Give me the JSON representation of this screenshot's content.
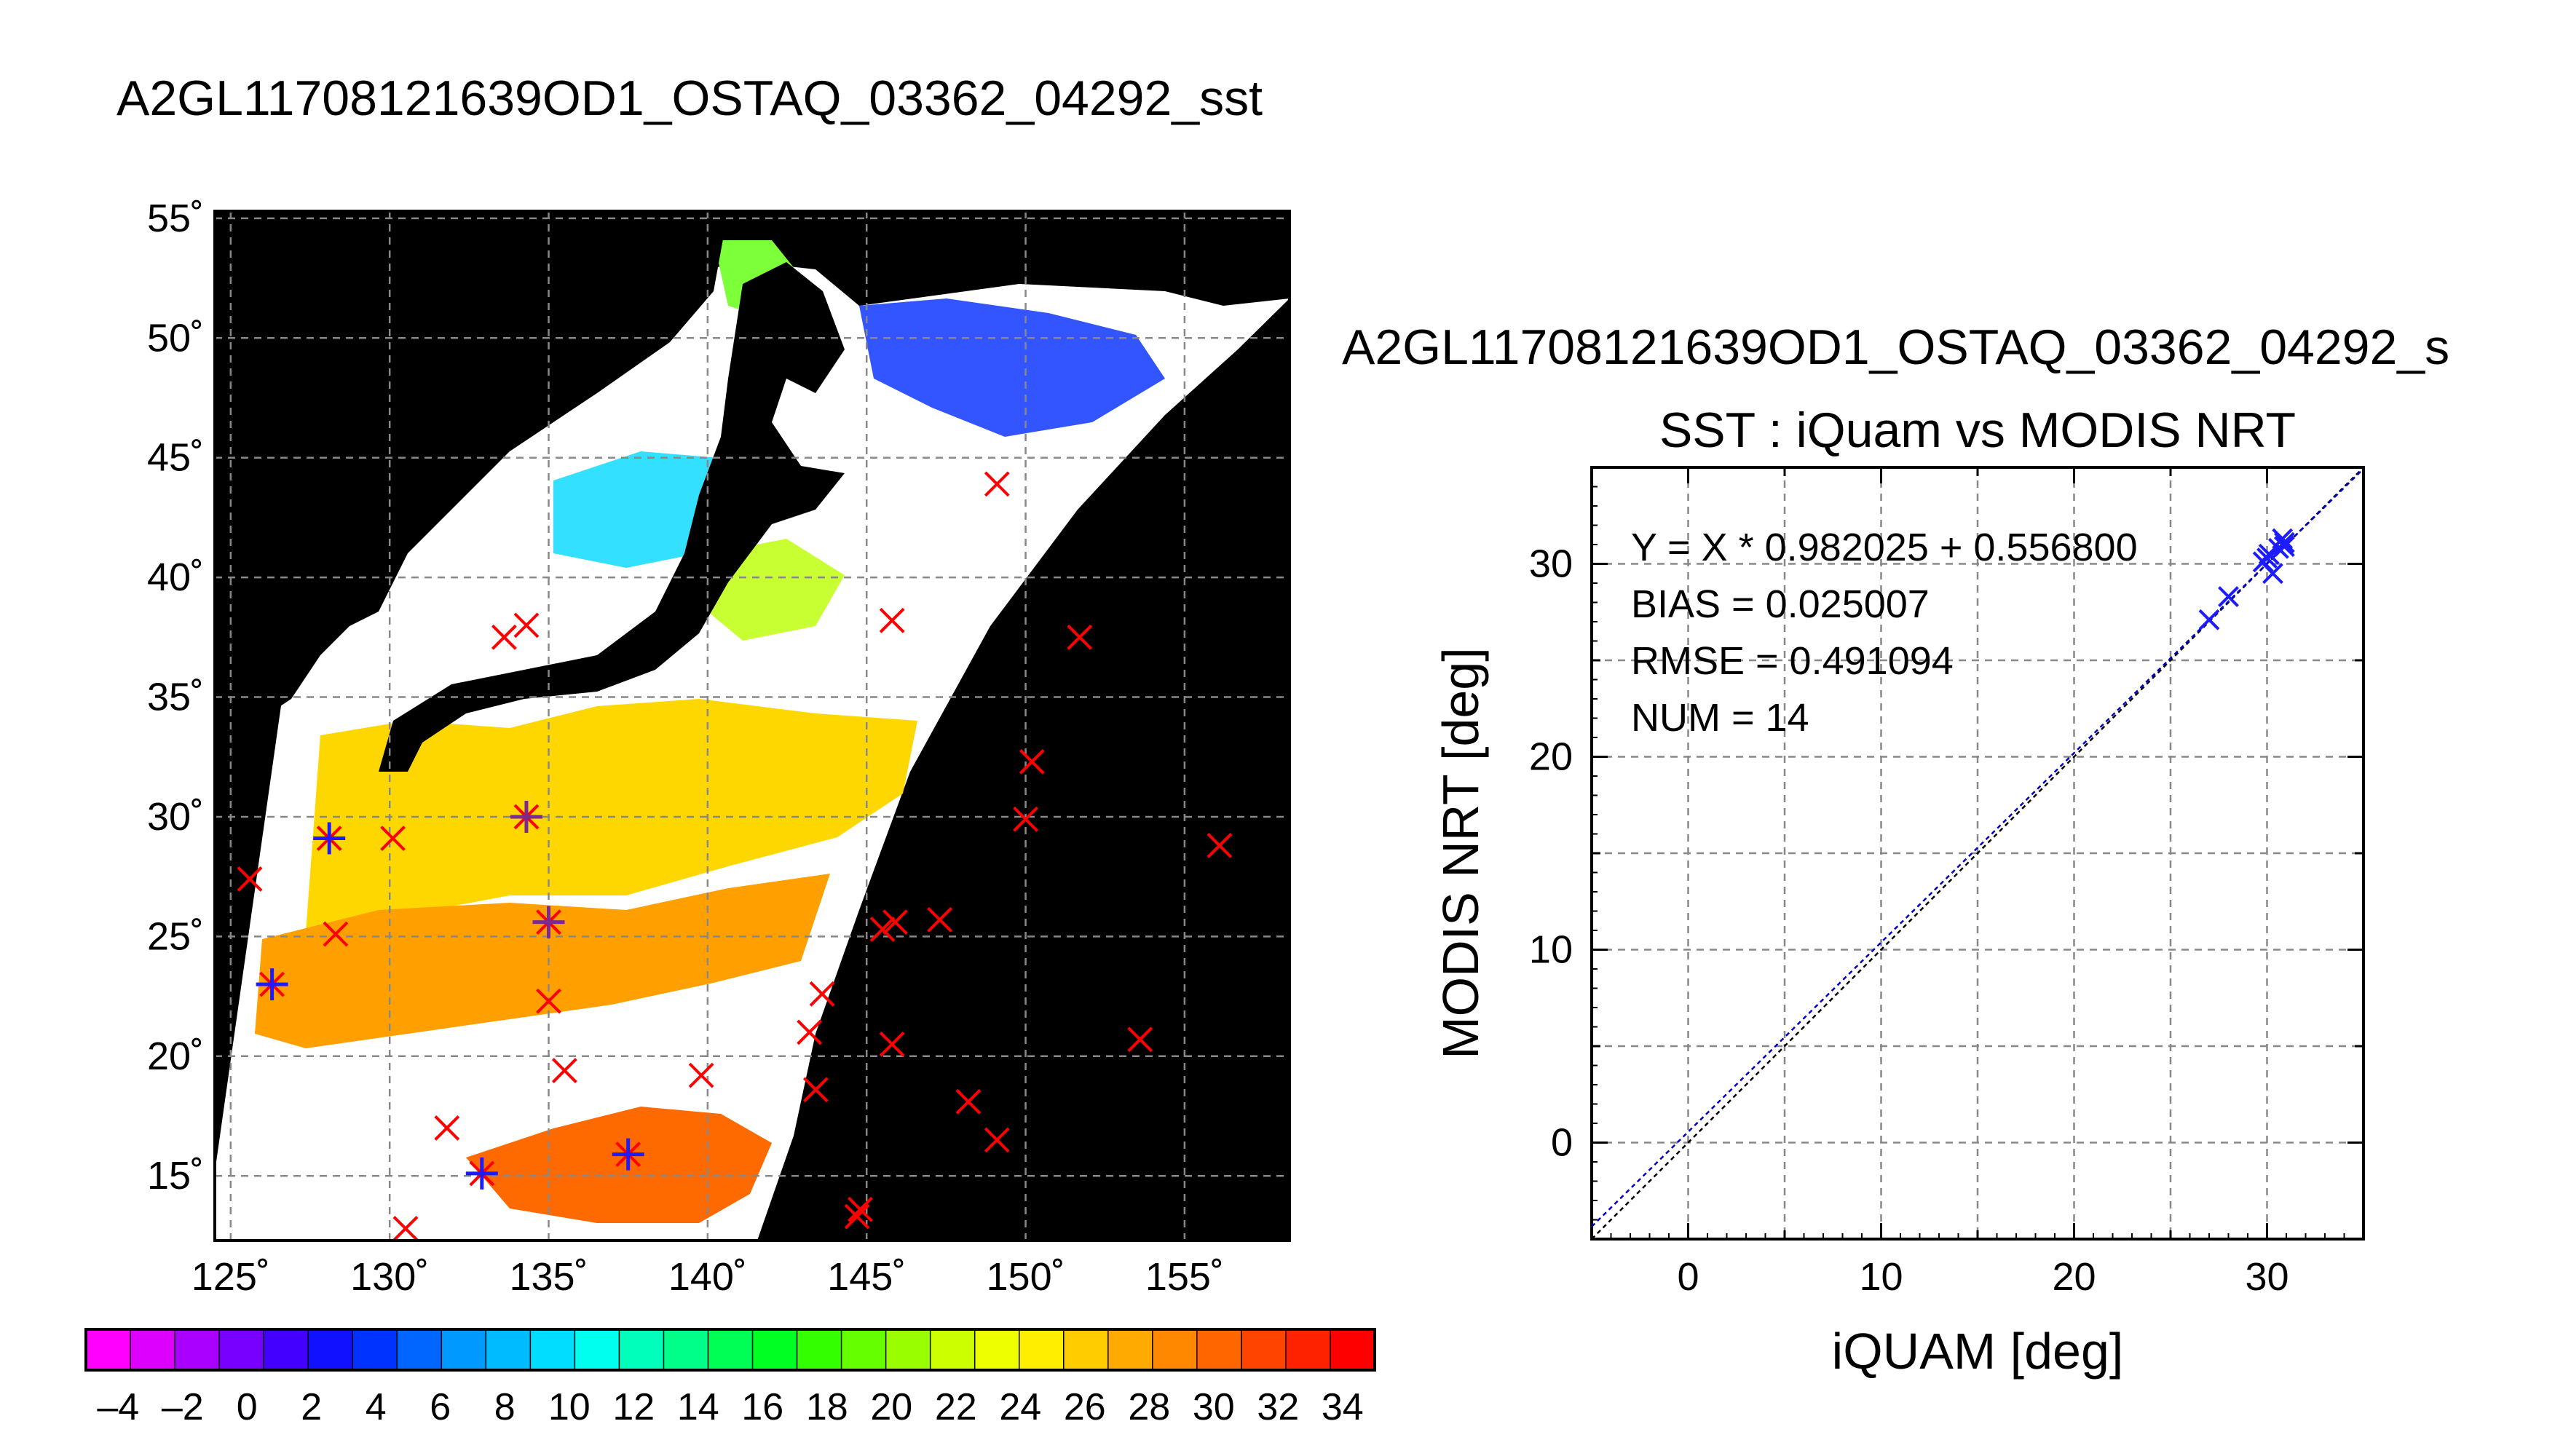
{
  "chart_data": [
    {
      "type": "map",
      "title": "A2GL11708121639OD1_OSTAQ_03362_04292_sst",
      "lon_ticks": [
        "125˚",
        "130˚",
        "135˚",
        "140˚",
        "145˚",
        "150˚",
        "155˚"
      ],
      "lat_ticks": [
        "55˚",
        "50˚",
        "45˚",
        "40˚",
        "35˚",
        "30˚",
        "25˚",
        "20˚",
        "15˚"
      ],
      "lon_range": [
        124.5,
        158.3
      ],
      "lat_range": [
        12.3,
        55.3
      ],
      "grid": true,
      "colorbar": {
        "ticks": [
          "–4",
          "–2",
          "0",
          "2",
          "4",
          "6",
          "8",
          "10",
          "12",
          "14",
          "16",
          "18",
          "20",
          "22",
          "24",
          "26",
          "28",
          "30",
          "32",
          "34"
        ],
        "range": [
          -5,
          35
        ],
        "colors": [
          "#ff00ff",
          "#dd00ff",
          "#aa00ff",
          "#7700ff",
          "#4400ff",
          "#1111ff",
          "#0033ff",
          "#0066ff",
          "#0099ff",
          "#00bbff",
          "#00ddff",
          "#00ffee",
          "#00ffbb",
          "#00ff88",
          "#00ff55",
          "#00ff22",
          "#33ff00",
          "#66ff00",
          "#99ff00",
          "#ccff00",
          "#eeff00",
          "#ffee00",
          "#ffcc00",
          "#ffaa00",
          "#ff8800",
          "#ff6600",
          "#ff4400",
          "#ff2200",
          "#ff0000"
        ]
      },
      "points": [
        {
          "lon": 128.1,
          "lat": 29.1,
          "marker": "asterisk-blue"
        },
        {
          "lon": 126.3,
          "lat": 23.0,
          "marker": "asterisk-blue"
        },
        {
          "lon": 132.9,
          "lat": 15.1,
          "marker": "asterisk-blue"
        },
        {
          "lon": 137.5,
          "lat": 15.9,
          "marker": "asterisk-blue"
        },
        {
          "lon": 134.3,
          "lat": 30.0,
          "marker": "asterisk-purple"
        },
        {
          "lon": 135.0,
          "lat": 25.6,
          "marker": "asterisk-purple"
        },
        {
          "lon": 125.6,
          "lat": 27.4,
          "marker": "x-red"
        },
        {
          "lon": 130.1,
          "lat": 29.1,
          "marker": "x-red"
        },
        {
          "lon": 128.3,
          "lat": 25.1,
          "marker": "x-red"
        },
        {
          "lon": 133.6,
          "lat": 37.5,
          "marker": "x-red"
        },
        {
          "lon": 134.3,
          "lat": 38.0,
          "marker": "x-red"
        },
        {
          "lon": 135.0,
          "lat": 22.3,
          "marker": "x-red"
        },
        {
          "lon": 135.5,
          "lat": 19.4,
          "marker": "x-red"
        },
        {
          "lon": 131.8,
          "lat": 17.0,
          "marker": "x-red"
        },
        {
          "lon": 130.5,
          "lat": 12.8,
          "marker": "x-red"
        },
        {
          "lon": 139.8,
          "lat": 19.2,
          "marker": "x-red"
        },
        {
          "lon": 143.2,
          "lat": 21.0,
          "marker": "x-red"
        },
        {
          "lon": 143.6,
          "lat": 22.6,
          "marker": "x-red"
        },
        {
          "lon": 143.4,
          "lat": 18.6,
          "marker": "x-red"
        },
        {
          "lon": 144.8,
          "lat": 13.6,
          "marker": "x-red"
        },
        {
          "lon": 144.7,
          "lat": 13.3,
          "marker": "x-red"
        },
        {
          "lon": 145.5,
          "lat": 25.3,
          "marker": "x-red"
        },
        {
          "lon": 145.9,
          "lat": 25.6,
          "marker": "x-red"
        },
        {
          "lon": 145.8,
          "lat": 20.5,
          "marker": "x-red"
        },
        {
          "lon": 147.3,
          "lat": 25.7,
          "marker": "x-red"
        },
        {
          "lon": 148.2,
          "lat": 18.1,
          "marker": "x-red"
        },
        {
          "lon": 149.1,
          "lat": 16.5,
          "marker": "x-red"
        },
        {
          "lon": 149.1,
          "lat": 43.9,
          "marker": "x-red"
        },
        {
          "lon": 145.8,
          "lat": 38.2,
          "marker": "x-red"
        },
        {
          "lon": 151.7,
          "lat": 37.5,
          "marker": "x-red"
        },
        {
          "lon": 150.2,
          "lat": 32.3,
          "marker": "x-red"
        },
        {
          "lon": 150.0,
          "lat": 29.9,
          "marker": "x-red"
        },
        {
          "lon": 156.1,
          "lat": 28.8,
          "marker": "x-red"
        },
        {
          "lon": 153.6,
          "lat": 20.7,
          "marker": "x-red"
        }
      ]
    },
    {
      "type": "scatter",
      "title_top": "A2GL11708121639OD1_OSTAQ_03362_04292_s",
      "title": "SST : iQuam vs MODIS NRT",
      "xlabel": "iQUAM [deg]",
      "ylabel": "MODIS NRT [deg]",
      "xlim": [
        -5,
        35
      ],
      "ylim": [
        -5,
        35
      ],
      "xticks": [
        "0",
        "10",
        "20",
        "30"
      ],
      "yticks": [
        "0",
        "10",
        "20",
        "30"
      ],
      "grid": true,
      "stats": [
        "Y = X * 0.982025 + 0.556800",
        "BIAS = 0.025007",
        "RMSE = 0.491094",
        "NUM = 14"
      ],
      "fit": {
        "slope": 0.982025,
        "intercept": 0.5568
      },
      "points": [
        {
          "x": 27.0,
          "y": 27.1
        },
        {
          "x": 28.0,
          "y": 28.3
        },
        {
          "x": 29.8,
          "y": 30.1
        },
        {
          "x": 30.0,
          "y": 30.3
        },
        {
          "x": 30.1,
          "y": 30.5
        },
        {
          "x": 30.3,
          "y": 29.5
        },
        {
          "x": 30.6,
          "y": 30.8
        },
        {
          "x": 30.8,
          "y": 31.3
        },
        {
          "x": 30.9,
          "y": 30.9
        },
        {
          "x": 30.9,
          "y": 31.1
        }
      ]
    }
  ]
}
